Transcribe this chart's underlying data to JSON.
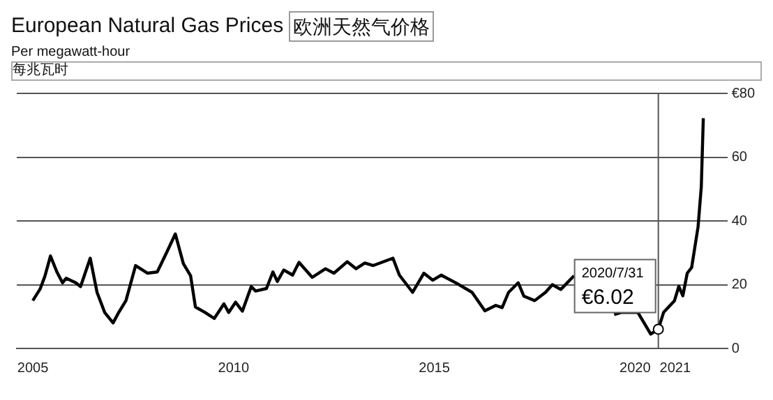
{
  "chart_data": {
    "type": "line",
    "title": "European Natural Gas Prices",
    "subtitle": "Per megawatt-hour",
    "annotations": [
      "欧洲天然气价格",
      "每兆瓦时",
      {
        "text": "2020/7/31\n€6.02",
        "x": 2020.58,
        "y": 6.02
      }
    ],
    "x": [
      2005.0,
      2005.18,
      2005.3,
      2005.44,
      2005.6,
      2005.74,
      2005.83,
      2006.07,
      2006.19,
      2006.43,
      2006.6,
      2006.79,
      2007.0,
      2007.14,
      2007.32,
      2007.56,
      2007.86,
      2008.1,
      2008.33,
      2008.55,
      2008.75,
      2008.93,
      2009.05,
      2009.29,
      2009.52,
      2009.76,
      2009.88,
      2010.05,
      2010.22,
      2010.44,
      2010.55,
      2010.82,
      2010.98,
      2011.09,
      2011.25,
      2011.47,
      2011.63,
      2011.96,
      2012.29,
      2012.5,
      2012.83,
      2013.05,
      2013.27,
      2013.48,
      2013.97,
      2014.13,
      2014.46,
      2014.74,
      2014.96,
      2015.17,
      2015.56,
      2015.94,
      2016.26,
      2016.53,
      2016.69,
      2016.85,
      2017.09,
      2017.23,
      2017.5,
      2017.77,
      2017.94,
      2018.15,
      2018.48,
      2018.7,
      2019.0,
      2019.3,
      2019.48,
      2019.65,
      2020.07,
      2020.39,
      2020.58,
      2020.71,
      2020.98,
      2021.09,
      2021.19,
      2021.3,
      2021.41,
      2021.57,
      2021.65,
      2021.7
    ],
    "series": [
      {
        "color": "#000000",
        "values": [
          15,
          18.6,
          22.6,
          29,
          24,
          20.6,
          22,
          20.6,
          19.4,
          28.3,
          17.6,
          11.3,
          8,
          11.3,
          15,
          26,
          23.6,
          24,
          30,
          35.9,
          26.6,
          22.8,
          13,
          11.3,
          9.4,
          14,
          11.3,
          14.5,
          11.7,
          19.4,
          18,
          18.8,
          24,
          21,
          24.6,
          23,
          27,
          22.3,
          25,
          23.6,
          27.2,
          25,
          26.8,
          26,
          28.3,
          23,
          17.6,
          23.6,
          21.4,
          23,
          20.4,
          17.6,
          11.8,
          13.5,
          12.8,
          17.6,
          20.6,
          16.4,
          15,
          17.6,
          20,
          18.5,
          22.8,
          null,
          null,
          null,
          10.6,
          11.3,
          11.3,
          4.5,
          6.02,
          11.3,
          14.9,
          19.5,
          16.5,
          23.6,
          25.4,
          38.2,
          50.7,
          72.2
        ]
      }
    ],
    "xlim": [
      2004.6,
      2022.3
    ],
    "xticks": [
      2005,
      2010,
      2015,
      2020,
      2021
    ],
    "ylim": [
      0,
      80
    ],
    "yticks": [
      0,
      20,
      40,
      {
        "value": 60,
        "label": "60"
      },
      {
        "value": 80,
        "label": "€80"
      }
    ],
    "ref_lines": [
      {
        "axis": "x",
        "value": 2020.58,
        "color": "#555555"
      }
    ],
    "grid": "y",
    "legend": false,
    "marker": "none",
    "line_style": "solid"
  }
}
